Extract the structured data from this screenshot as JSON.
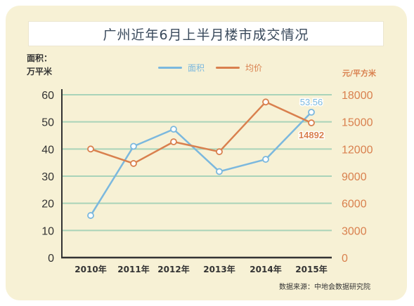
{
  "chart_data": {
    "type": "line",
    "title": "广州近年6月上半月楼市成交情况",
    "categories": [
      "2010年",
      "2011年",
      "2012年",
      "2013年",
      "2014年",
      "2015年"
    ],
    "left_axis": {
      "label_line1": "面积：",
      "label_line2": "万平米",
      "ylim": [
        0,
        60
      ],
      "ticks": [
        "0",
        "10",
        "20",
        "30",
        "40",
        "50",
        "60"
      ]
    },
    "right_axis": {
      "label": "元/平方米",
      "ylim": [
        0,
        18000
      ],
      "ticks": [
        "0",
        "3000",
        "6000",
        "9000",
        "12000",
        "15000",
        "18000"
      ]
    },
    "series": [
      {
        "name": "面积",
        "axis": "left",
        "color": "#7bb8de",
        "values": [
          15.5,
          41,
          47.3,
          31.7,
          36.2,
          53.56
        ],
        "last_label": "53.56"
      },
      {
        "name": "均价",
        "axis": "right",
        "color": "#d9804e",
        "values": [
          12000,
          10400,
          12800,
          11700,
          17200,
          14892
        ],
        "last_label": "14892"
      }
    ],
    "grid": true,
    "legend": "top"
  },
  "source_note": "数据来源：中地会数据研究院",
  "colors": {
    "background": "#f7f1d5",
    "grid": "#a9d3b9",
    "axis": "#333333",
    "left_tick": "#333333",
    "right_tick": "#d9804e"
  }
}
